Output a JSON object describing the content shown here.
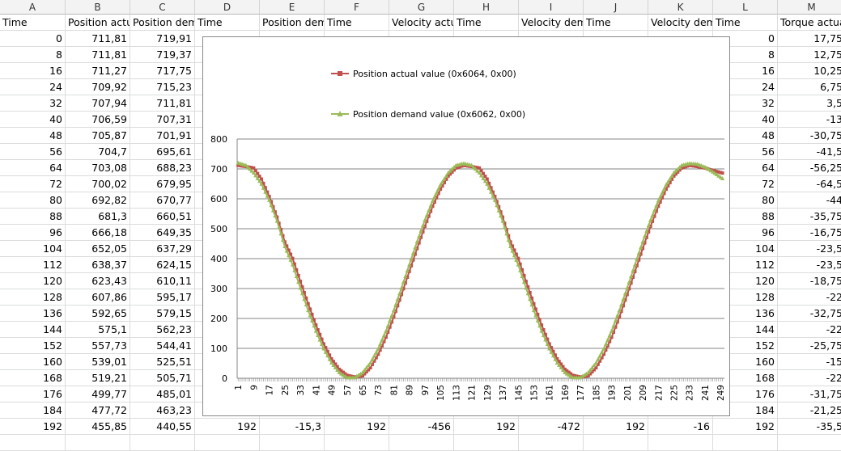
{
  "columns": [
    "A",
    "B",
    "C",
    "D",
    "E",
    "F",
    "G",
    "H",
    "I",
    "J",
    "K",
    "L",
    "M"
  ],
  "header_row": [
    "Time",
    "Position actual value",
    "Position demand value",
    "Time",
    "Position demand value",
    "Time",
    "Velocity actual value",
    "Time",
    "Velocity demand value",
    "Time",
    "Velocity demand value",
    "Time",
    "Torque actual value"
  ],
  "col_abc_rows": [
    [
      "0",
      "711,81",
      "719,91"
    ],
    [
      "8",
      "711,81",
      "719,37"
    ],
    [
      "16",
      "711,27",
      "717,75"
    ],
    [
      "24",
      "709,92",
      "715,23"
    ],
    [
      "32",
      "707,94",
      "711,81"
    ],
    [
      "40",
      "706,59",
      "707,31"
    ],
    [
      "48",
      "705,87",
      "701,91"
    ],
    [
      "56",
      "704,7",
      "695,61"
    ],
    [
      "64",
      "703,08",
      "688,23"
    ],
    [
      "72",
      "700,02",
      "679,95"
    ],
    [
      "80",
      "692,82",
      "670,77"
    ],
    [
      "88",
      "681,3",
      "660,51"
    ],
    [
      "96",
      "666,18",
      "649,35"
    ],
    [
      "104",
      "652,05",
      "637,29"
    ],
    [
      "112",
      "638,37",
      "624,15"
    ],
    [
      "120",
      "623,43",
      "610,11"
    ],
    [
      "128",
      "607,86",
      "595,17"
    ],
    [
      "136",
      "592,65",
      "579,15"
    ],
    [
      "144",
      "575,1",
      "562,23"
    ],
    [
      "152",
      "557,73",
      "544,41"
    ],
    [
      "160",
      "539,01",
      "525,51"
    ],
    [
      "168",
      "519,21",
      "505,71"
    ],
    [
      "176",
      "499,77",
      "485,01"
    ],
    [
      "184",
      "477,72",
      "463,23"
    ],
    [
      "192",
      "455,85",
      "440,55"
    ]
  ],
  "col_lm_rows": [
    [
      "0",
      "17,75"
    ],
    [
      "8",
      "12,75"
    ],
    [
      "16",
      "10,25"
    ],
    [
      "24",
      "6,75"
    ],
    [
      "32",
      "3,5"
    ],
    [
      "40",
      "-13"
    ],
    [
      "48",
      "-30,75"
    ],
    [
      "56",
      "-41,5"
    ],
    [
      "64",
      "-56,25"
    ],
    [
      "72",
      "-64,5"
    ],
    [
      "80",
      "-44"
    ],
    [
      "88",
      "-35,75"
    ],
    [
      "96",
      "-16,75"
    ],
    [
      "104",
      "-23,5"
    ],
    [
      "112",
      "-23,5"
    ],
    [
      "120",
      "-18,75"
    ],
    [
      "128",
      "-22"
    ],
    [
      "136",
      "-32,75"
    ],
    [
      "144",
      "-22"
    ],
    [
      "152",
      "-25,75"
    ],
    [
      "160",
      "-15"
    ],
    [
      "168",
      "-22"
    ],
    [
      "176",
      "-31,75"
    ],
    [
      "184",
      "-21,25"
    ],
    [
      "192",
      "-35,5"
    ]
  ],
  "last_row_d_to_k": [
    "192",
    "-15,3",
    "192",
    "-456",
    "192",
    "-472",
    "192",
    "-16"
  ],
  "chart_data": {
    "type": "line",
    "title": "",
    "xlabel": "",
    "ylabel": "",
    "ylim": [
      0,
      800
    ],
    "yticks": [
      "0",
      "100",
      "200",
      "300",
      "400",
      "500",
      "600",
      "700",
      "800"
    ],
    "xticks_every": 8,
    "x_first": 1,
    "x_last": 249,
    "x_count": 250,
    "x_sample_step": 4,
    "grid": true,
    "legend_position": "top",
    "series": [
      {
        "name": "Position actual value (0x6064, 0x00)",
        "color": "#c0504d",
        "marker": "square",
        "values": [
          711.8,
          707.9,
          703.1,
          666.2,
          607.9,
          539.0,
          455.9,
          401,
          324,
          249,
          178,
          115,
          65,
          30,
          10,
          4,
          8,
          35,
          80,
          137,
          205,
          280,
          357,
          434,
          508,
          575,
          632,
          676,
          703,
          711.8,
          707.9,
          703.1,
          666.2,
          607.9,
          539.0,
          455.9,
          401,
          324,
          249,
          178,
          115,
          65,
          30,
          10,
          4,
          8,
          35,
          80,
          137,
          205,
          280,
          357,
          434,
          508,
          575,
          632,
          676,
          703,
          711.8,
          708,
          703,
          695,
          688
        ]
      },
      {
        "name": "Position demand value (0x6062, 0x00)",
        "color": "#9bbb59",
        "marker": "triangle",
        "values": [
          719.9,
          711.8,
          686.7,
          649.4,
          595.2,
          525.5,
          440.6,
          379.5,
          301.8,
          226.8,
          157.9,
          98.6,
          51.5,
          18.8,
          2.1,
          2.1,
          18.8,
          51.5,
          98.6,
          157.9,
          226.8,
          301.8,
          379.5,
          456.3,
          528.6,
          593.0,
          646.6,
          686.7,
          711.6,
          718,
          711.8,
          686.7,
          649.4,
          595.2,
          525.5,
          440.6,
          379.5,
          301.8,
          226.8,
          157.9,
          98.6,
          51.5,
          18.8,
          2.1,
          2.1,
          18.8,
          51.5,
          98.6,
          157.9,
          226.8,
          301.8,
          379.5,
          456.3,
          528.6,
          593.0,
          646.6,
          686.7,
          711.6,
          718,
          716,
          706,
          690,
          672
        ]
      }
    ]
  }
}
